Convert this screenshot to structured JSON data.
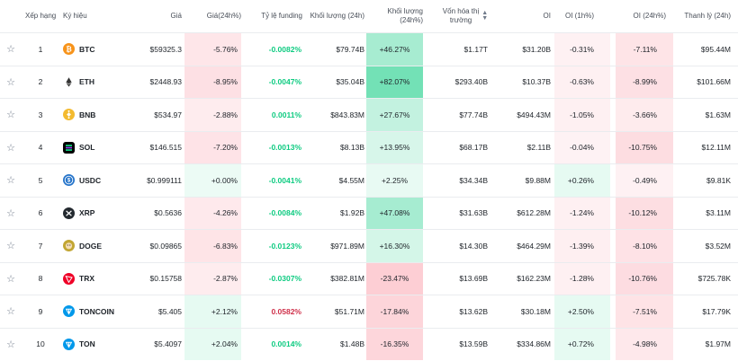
{
  "header": {
    "rank": "Xếp hạng",
    "symbol": "Ký hiệu",
    "price": "Giá",
    "change24h": "Giá(24h%)",
    "funding": "Tỷ lệ funding",
    "volume": "Khối lượng (24h)",
    "volume_pct": "Khối lượng (24h%)",
    "mcap_line1": "Vốn hóa thị",
    "mcap_line2": "trường",
    "oi": "OI",
    "oi_1h": "OI (1h%)",
    "oi_24h": "OI (24h%)",
    "liq": "Thanh lý (24h)"
  },
  "rows": [
    {
      "rank": "1",
      "symbol": "BTC",
      "icon": "btc-icon",
      "price": "$59325.3",
      "change": "-5.76%",
      "change_dir": "neg",
      "funding": "-0.0082%",
      "funding_dir": "pos",
      "volume": "$79.74B",
      "volume_pct": "+46.27%",
      "volume_dir": "pos",
      "mcap": "$1.17T",
      "oi": "$31.20B",
      "oi_1h": "-0.31%",
      "oi_1h_dir": "neg",
      "oi_24h": "-7.11%",
      "oi_24h_dir": "neg",
      "liq": "$95.44M"
    },
    {
      "rank": "2",
      "symbol": "ETH",
      "icon": "eth-icon",
      "price": "$2448.93",
      "change": "-8.95%",
      "change_dir": "neg",
      "funding": "-0.0047%",
      "funding_dir": "pos",
      "volume": "$35.04B",
      "volume_pct": "+82.07%",
      "volume_dir": "pos",
      "mcap": "$293.40B",
      "oi": "$10.37B",
      "oi_1h": "-0.63%",
      "oi_1h_dir": "neg",
      "oi_24h": "-8.99%",
      "oi_24h_dir": "neg",
      "liq": "$101.66M"
    },
    {
      "rank": "3",
      "symbol": "BNB",
      "icon": "bnb-icon",
      "price": "$534.97",
      "change": "-2.88%",
      "change_dir": "neg",
      "funding": "0.0011%",
      "funding_dir": "pos",
      "volume": "$843.83M",
      "volume_pct": "+27.67%",
      "volume_dir": "pos",
      "mcap": "$77.74B",
      "oi": "$494.43M",
      "oi_1h": "-1.05%",
      "oi_1h_dir": "neg",
      "oi_24h": "-3.66%",
      "oi_24h_dir": "neg",
      "liq": "$1.63M"
    },
    {
      "rank": "4",
      "symbol": "SOL",
      "icon": "sol-icon",
      "price": "$146.515",
      "change": "-7.20%",
      "change_dir": "neg",
      "funding": "-0.0013%",
      "funding_dir": "pos",
      "volume": "$8.13B",
      "volume_pct": "+13.95%",
      "volume_dir": "pos",
      "mcap": "$68.17B",
      "oi": "$2.11B",
      "oi_1h": "-0.04%",
      "oi_1h_dir": "neg",
      "oi_24h": "-10.75%",
      "oi_24h_dir": "neg",
      "liq": "$12.11M"
    },
    {
      "rank": "5",
      "symbol": "USDC",
      "icon": "usdc-icon",
      "price": "$0.999111",
      "change": "+0.00%",
      "change_dir": "pos",
      "funding": "-0.0041%",
      "funding_dir": "pos",
      "volume": "$4.55M",
      "volume_pct": "+2.25%",
      "volume_dir": "pos",
      "mcap": "$34.34B",
      "oi": "$9.88M",
      "oi_1h": "+0.26%",
      "oi_1h_dir": "pos",
      "oi_24h": "-0.49%",
      "oi_24h_dir": "neg",
      "liq": "$9.81K"
    },
    {
      "rank": "6",
      "symbol": "XRP",
      "icon": "xrp-icon",
      "price": "$0.5636",
      "change": "-4.26%",
      "change_dir": "neg",
      "funding": "-0.0084%",
      "funding_dir": "pos",
      "volume": "$1.92B",
      "volume_pct": "+47.08%",
      "volume_dir": "pos",
      "mcap": "$31.63B",
      "oi": "$612.28M",
      "oi_1h": "-1.24%",
      "oi_1h_dir": "neg",
      "oi_24h": "-10.12%",
      "oi_24h_dir": "neg",
      "liq": "$3.11M"
    },
    {
      "rank": "7",
      "symbol": "DOGE",
      "icon": "doge-icon",
      "price": "$0.09865",
      "change": "-6.83%",
      "change_dir": "neg",
      "funding": "-0.0123%",
      "funding_dir": "pos",
      "volume": "$971.89M",
      "volume_pct": "+16.30%",
      "volume_dir": "pos",
      "mcap": "$14.30B",
      "oi": "$464.29M",
      "oi_1h": "-1.39%",
      "oi_1h_dir": "neg",
      "oi_24h": "-8.10%",
      "oi_24h_dir": "neg",
      "liq": "$3.52M"
    },
    {
      "rank": "8",
      "symbol": "TRX",
      "icon": "trx-icon",
      "price": "$0.15758",
      "change": "-2.87%",
      "change_dir": "neg",
      "funding": "-0.0307%",
      "funding_dir": "pos",
      "volume": "$382.81M",
      "volume_pct": "-23.47%",
      "volume_dir": "neg",
      "mcap": "$13.69B",
      "oi": "$162.23M",
      "oi_1h": "-1.28%",
      "oi_1h_dir": "neg",
      "oi_24h": "-10.76%",
      "oi_24h_dir": "neg",
      "liq": "$725.78K"
    },
    {
      "rank": "9",
      "symbol": "TONCOIN",
      "icon": "toncoin-icon",
      "price": "$5.405",
      "change": "+2.12%",
      "change_dir": "pos",
      "funding": "0.0582%",
      "funding_dir": "neg",
      "volume": "$51.71M",
      "volume_pct": "-17.84%",
      "volume_dir": "neg",
      "mcap": "$13.62B",
      "oi": "$30.18M",
      "oi_1h": "+2.50%",
      "oi_1h_dir": "pos",
      "oi_24h": "-7.51%",
      "oi_24h_dir": "neg",
      "liq": "$17.79K"
    },
    {
      "rank": "10",
      "symbol": "TON",
      "icon": "ton-icon",
      "price": "$5.4097",
      "change": "+2.04%",
      "change_dir": "pos",
      "funding": "0.0014%",
      "funding_dir": "pos",
      "volume": "$1.48B",
      "volume_pct": "-16.35%",
      "volume_dir": "neg",
      "mcap": "$13.59B",
      "oi": "$334.86M",
      "oi_1h": "+0.72%",
      "oi_1h_dir": "pos",
      "oi_24h": "-4.98%",
      "oi_24h_dir": "neg",
      "liq": "$1.97M"
    }
  ],
  "colors": {
    "positive_text": "#0ecb81",
    "negative_text": "#cf304a",
    "icon_btc": "#f7931a",
    "icon_eth": "#ffffff",
    "icon_bnb": "#f3ba2f",
    "icon_sol": "#000000",
    "icon_usdc": "#2775ca",
    "icon_xrp": "#23292f",
    "icon_doge": "#c2a633",
    "icon_trx": "#ef0027",
    "icon_toncoin": "#0098ea",
    "icon_ton": "#0098ea"
  }
}
